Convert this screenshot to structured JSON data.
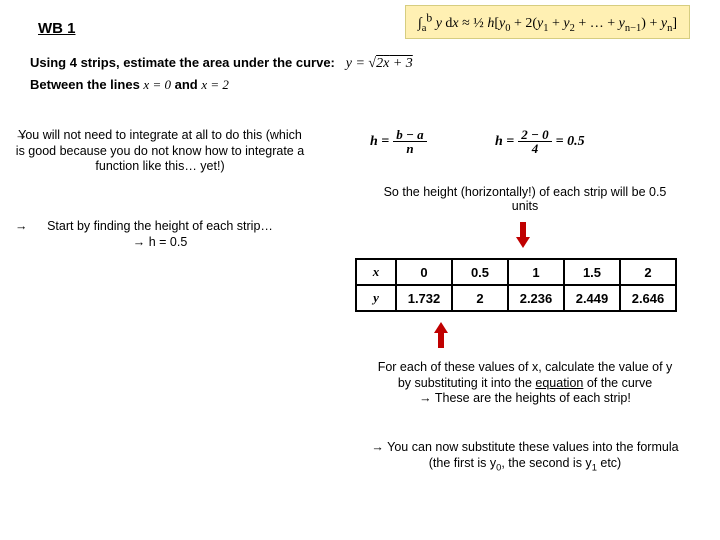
{
  "header": "WB 1",
  "formula_box_html": "∫<sub>a</sub><sup>b</sup> <i>y</i> d<i>x</i> ≈ ½ <i>h</i>[<i>y</i><sub>0</sub> + 2(<i>y</i><sub>1</sub> + <i>y</i><sub>2</sub> + … + <i>y</i><sub>n−1</sub>) + <i>y</i><sub>n</sub>]",
  "intro_line1_pre": "Using 4 strips, estimate the area under the curve:",
  "intro_line1_eq": "y = √(2x + 3)",
  "intro_line2_pre": "Between the lines ",
  "intro_line2_eq1": "x = 0",
  "intro_line2_mid": " and ",
  "intro_line2_eq2": "x = 2",
  "bullet1": "You will not need to integrate at all to do this (which is good because you do not know how to integrate a function like this… yet!)",
  "bullet2_line1": "Start by finding the height of each strip…",
  "bullet2_line2": "→   h = 0.5",
  "h_formula": {
    "lhs": "h =",
    "frac1_num": "b − a",
    "frac1_den": "n",
    "frac2_lhs": "h =",
    "frac2_num": "2 − 0",
    "frac2_den": "4",
    "result": "= 0.5"
  },
  "strip_text": "So the height (horizontally!) of each strip will be 0.5 units",
  "table": {
    "row_x_label": "x",
    "row_y_label": "y",
    "x": [
      "0",
      "0.5",
      "1",
      "1.5",
      "2"
    ],
    "y": [
      "1.732",
      "2",
      "2.236",
      "2.449",
      "2.646"
    ]
  },
  "para1": "For each of these values of x, calculate the value of y by substituting it into the equation of the curve",
  "para1_line4": "→ These are the heights of each strip!",
  "para2_html": "→ You can now substitute these values into the formula (the first is y<sub>0</sub>, the second is y<sub>1</sub> etc)",
  "colors": {
    "formula_bg": "#fff0b3",
    "formula_border": "#d6cd80",
    "arrow_fill": "#c00000",
    "text": "#000000"
  }
}
